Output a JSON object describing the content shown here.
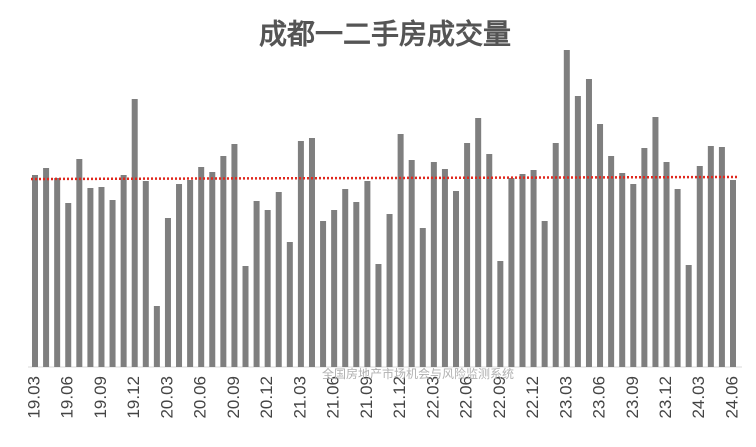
{
  "chart_data": {
    "type": "bar",
    "title": "成都一二手房成交量",
    "watermark": "全国房地产市场机会与风险监测系统",
    "categories": [
      "19.03",
      null,
      null,
      "19.06",
      null,
      null,
      "19.09",
      null,
      null,
      "19.12",
      null,
      null,
      "20.03",
      null,
      null,
      "20.06",
      null,
      null,
      "20.09",
      null,
      null,
      "20.12",
      null,
      null,
      "21.03",
      null,
      null,
      "21.06",
      null,
      null,
      "21.09",
      null,
      null,
      "21.12",
      null,
      null,
      "22.03",
      null,
      null,
      "22.06",
      null,
      null,
      "22.09",
      null,
      null,
      "22.12",
      null,
      null,
      "23.03",
      null,
      null,
      "23.06",
      null,
      null,
      "23.09",
      null,
      null,
      "23.12",
      null,
      null,
      "24.03",
      null,
      null,
      "24.06"
    ],
    "values": [
      192,
      199,
      189,
      164,
      208,
      179,
      180,
      167,
      192,
      268,
      186,
      61,
      149,
      183,
      187,
      200,
      195,
      211,
      223,
      101,
      166,
      157,
      175,
      125,
      226,
      229,
      146,
      157,
      178,
      165,
      186,
      103,
      153,
      233,
      207,
      139,
      205,
      198,
      176,
      224,
      249,
      213,
      106,
      189,
      193,
      197,
      146,
      224,
      317,
      271,
      288,
      243,
      211,
      194,
      183,
      219,
      250,
      205,
      178,
      102,
      201,
      221,
      220,
      187
    ],
    "color": "#7f7f7f",
    "trendline": {
      "color": "#e0281e",
      "values": [
        188,
        190
      ]
    },
    "ylim": [
      0,
      347
    ]
  }
}
